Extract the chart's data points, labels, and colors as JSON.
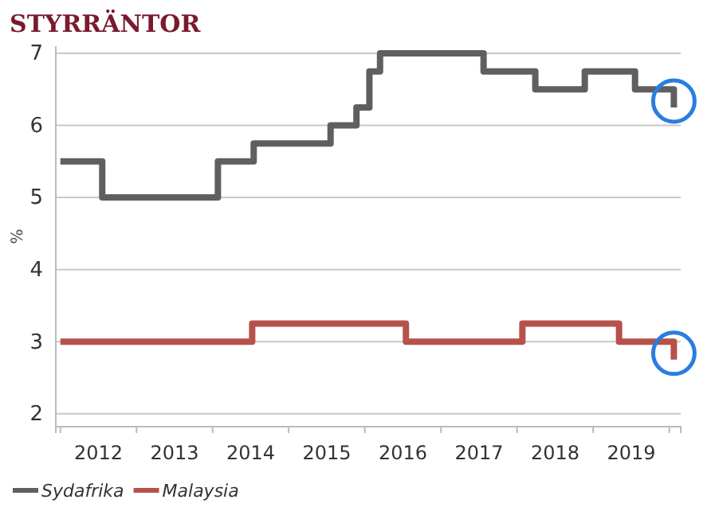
{
  "chart_data": {
    "type": "step",
    "title": "STYRRÄNTOR",
    "ylabel": "%",
    "xlim": [
      2011.94,
      2020.15
    ],
    "ylim": [
      1.82,
      7.1
    ],
    "yticks": [
      2,
      3,
      4,
      5,
      6,
      7
    ],
    "xticks": [
      {
        "value": 2012,
        "label": null
      },
      {
        "value": 2012.5,
        "label": "2012"
      },
      {
        "value": 2013,
        "label": null
      },
      {
        "value": 2013.5,
        "label": "2013"
      },
      {
        "value": 2014,
        "label": null
      },
      {
        "value": 2014.5,
        "label": "2014"
      },
      {
        "value": 2015,
        "label": null
      },
      {
        "value": 2015.5,
        "label": "2015"
      },
      {
        "value": 2016,
        "label": null
      },
      {
        "value": 2016.5,
        "label": "2016"
      },
      {
        "value": 2017,
        "label": null
      },
      {
        "value": 2017.5,
        "label": "2017"
      },
      {
        "value": 2018,
        "label": null
      },
      {
        "value": 2018.5,
        "label": "2018"
      },
      {
        "value": 2019,
        "label": null
      },
      {
        "value": 2019.5,
        "label": "2019"
      },
      {
        "value": 2020,
        "label": null
      }
    ],
    "grid": "y",
    "legend": "bottom",
    "series": [
      {
        "name": "Sydafrika",
        "color": "#5f5f5f",
        "x": [
          2012,
          2012.55,
          2014.07,
          2014.54,
          2015.55,
          2015.89,
          2016.06,
          2016.2,
          2017.56,
          2018.24,
          2018.89,
          2019.55,
          2020.06
        ],
        "values": [
          5.5,
          5,
          5.5,
          5.75,
          6,
          6.25,
          6.75,
          7,
          6.75,
          6.5,
          6.75,
          6.5,
          6.25
        ]
      },
      {
        "name": "Malaysia",
        "color": "#b5524a",
        "x": [
          2012,
          2014.52,
          2016.54,
          2018.07,
          2019.34,
          2020.06
        ],
        "values": [
          3,
          3.25,
          3,
          3.25,
          3,
          2.75
        ]
      }
    ]
  }
}
